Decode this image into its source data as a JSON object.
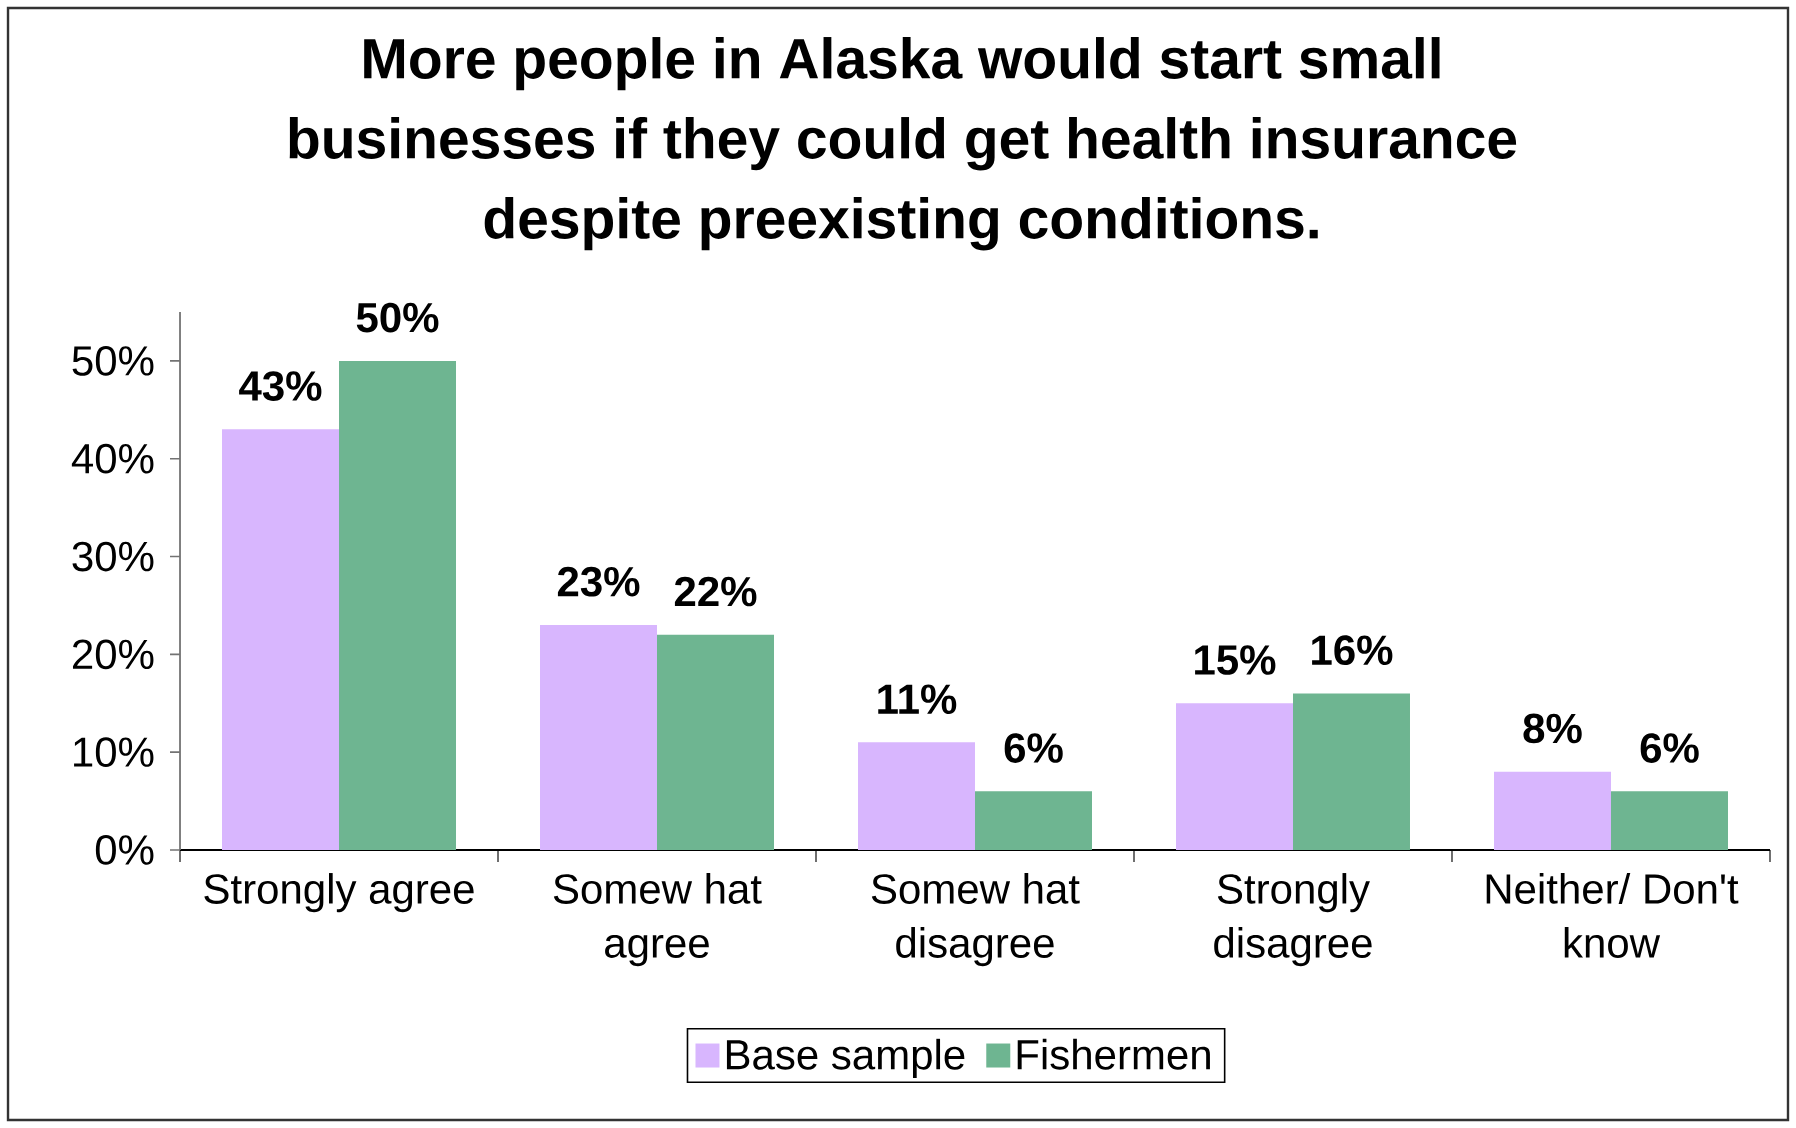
{
  "chart_data": {
    "type": "bar",
    "title": "More people in Alaska would start small businesses if they could get health insurance despite preexisting conditions.",
    "categories": [
      "Strongly agree",
      "Somew hat agree",
      "Somew hat disagree",
      "Strongly disagree",
      "Neither/ Don't know"
    ],
    "series": [
      {
        "name": "Base sample",
        "color": "#d8b6fe",
        "values": [
          43,
          23,
          11,
          15,
          8
        ],
        "value_labels": [
          "43%",
          "23%",
          "11%",
          "15%",
          "8%"
        ]
      },
      {
        "name": "Fishermen",
        "color": "#6eb591",
        "values": [
          50,
          22,
          6,
          16,
          6
        ],
        "value_labels": [
          "50%",
          "22%",
          "6%",
          "16%",
          "6%"
        ]
      }
    ],
    "ylim": [
      0,
      55
    ],
    "yticks": [
      {
        "value": 0,
        "label": "0%"
      },
      {
        "value": 10,
        "label": "10%"
      },
      {
        "value": 20,
        "label": "20%"
      },
      {
        "value": 30,
        "label": "30%"
      },
      {
        "value": 40,
        "label": "40%"
      },
      {
        "value": 50,
        "label": "50%"
      }
    ],
    "legend": "bottom"
  }
}
